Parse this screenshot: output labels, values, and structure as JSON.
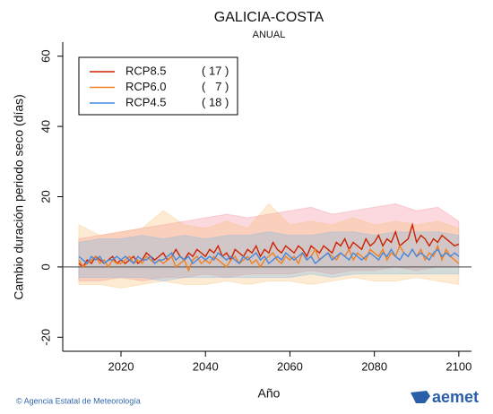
{
  "chart_data": {
    "type": "line",
    "title": "GALICIA-COSTA",
    "subtitle": "ANUAL",
    "x_label": "Año",
    "y_label": "Cambio duración periodo seco (días)",
    "footer": "© Agencia Estatal de Meteorología",
    "logo": "aemet",
    "xlim": [
      2006.2,
      2103
    ],
    "ylim": [
      -24,
      64
    ],
    "xticks": [
      2020,
      2040,
      2060,
      2080,
      2100
    ],
    "yticks": [
      -20,
      0,
      20,
      40,
      60
    ],
    "legend": "upper left",
    "x": [
      2010,
      2011,
      2012,
      2013,
      2014,
      2015,
      2016,
      2017,
      2018,
      2019,
      2020,
      2021,
      2022,
      2023,
      2024,
      2025,
      2026,
      2027,
      2028,
      2029,
      2030,
      2031,
      2032,
      2033,
      2034,
      2035,
      2036,
      2037,
      2038,
      2039,
      2040,
      2041,
      2042,
      2043,
      2044,
      2045,
      2046,
      2047,
      2048,
      2049,
      2050,
      2051,
      2052,
      2053,
      2054,
      2055,
      2056,
      2057,
      2058,
      2059,
      2060,
      2061,
      2062,
      2063,
      2064,
      2065,
      2066,
      2067,
      2068,
      2069,
      2070,
      2071,
      2072,
      2073,
      2074,
      2075,
      2076,
      2077,
      2078,
      2079,
      2080,
      2081,
      2082,
      2083,
      2084,
      2085,
      2086,
      2087,
      2088,
      2089,
      2090,
      2091,
      2092,
      2093,
      2094,
      2095,
      2096,
      2097,
      2098,
      2099,
      2100
    ],
    "series": [
      {
        "name": "RCP8.5",
        "count_label": "( 17 )",
        "color": "#cc2200",
        "band_color": "rgba(240,120,140,0.28)",
        "values": [
          1,
          0,
          2,
          1,
          3,
          2,
          1,
          2,
          3,
          1,
          2,
          1,
          2,
          3,
          1,
          2,
          4,
          3,
          2,
          3,
          4,
          2,
          3,
          5,
          3,
          2,
          4,
          3,
          5,
          4,
          3,
          5,
          4,
          6,
          3,
          4,
          2,
          5,
          4,
          3,
          5,
          4,
          6,
          3,
          5,
          4,
          7,
          5,
          4,
          6,
          5,
          4,
          6,
          5,
          3,
          6,
          5,
          4,
          6,
          5,
          4,
          7,
          6,
          8,
          5,
          7,
          6,
          5,
          8,
          6,
          7,
          9,
          6,
          8,
          7,
          10,
          6,
          7,
          8,
          12,
          7,
          9,
          8,
          6,
          8,
          7,
          9,
          8,
          7,
          6,
          6.5
        ],
        "band": {
          "x": [
            2010,
            2015,
            2020,
            2025,
            2030,
            2035,
            2040,
            2045,
            2050,
            2055,
            2060,
            2065,
            2070,
            2075,
            2080,
            2085,
            2090,
            2095,
            2100
          ],
          "upper": [
            8,
            9,
            10,
            11,
            12,
            13,
            14,
            15,
            14,
            15,
            16,
            17,
            15,
            16,
            17,
            18,
            16,
            17,
            13
          ],
          "lower": [
            -4,
            -4,
            -3,
            -4,
            -3,
            -3,
            -2,
            -3,
            -2,
            -2,
            -2,
            -1,
            -2,
            -1,
            -1,
            0,
            -1,
            0,
            0
          ]
        }
      },
      {
        "name": "RCP6.0",
        "count_label": "(   7 )",
        "color": "#f08020",
        "band_color": "rgba(250,190,110,0.30)",
        "values": [
          2,
          0,
          1,
          2,
          3,
          1,
          2,
          0,
          2,
          1,
          1,
          2,
          3,
          1,
          2,
          1,
          3,
          2,
          1,
          2,
          1,
          2,
          3,
          0,
          1,
          2,
          -1,
          2,
          3,
          1,
          2,
          1,
          3,
          2,
          1,
          0,
          2,
          3,
          1,
          2,
          3,
          1,
          2,
          0,
          2,
          3,
          4,
          2,
          1,
          3,
          2,
          3,
          1,
          4,
          2,
          3,
          5,
          2,
          3,
          4,
          3,
          2,
          4,
          3,
          5,
          2,
          4,
          3,
          2,
          5,
          4,
          3,
          5,
          2,
          4,
          3,
          6,
          4,
          3,
          5,
          3,
          5,
          2,
          4,
          3,
          6,
          2,
          5,
          3,
          2,
          1
        ],
        "band": {
          "x": [
            2010,
            2015,
            2020,
            2025,
            2030,
            2035,
            2040,
            2045,
            2050,
            2055,
            2060,
            2065,
            2070,
            2075,
            2080,
            2085,
            2090,
            2095,
            2100
          ],
          "upper": [
            12,
            9,
            10,
            11,
            16,
            12,
            11,
            13,
            11,
            18,
            12,
            13,
            12,
            14,
            12,
            13,
            12,
            13,
            11
          ],
          "lower": [
            -5,
            -5,
            -6,
            -5,
            -4,
            -5,
            -5,
            -4,
            -5,
            -4,
            -4,
            -5,
            -4,
            -3,
            -4,
            -4,
            -3,
            -4,
            -5
          ]
        }
      },
      {
        "name": "RCP4.5",
        "count_label": "( 18 )",
        "color": "#4488dd",
        "band_color": "rgba(120,180,230,0.30)",
        "values": [
          3,
          2,
          1,
          3,
          2,
          3,
          1,
          2,
          2,
          3,
          2,
          3,
          2,
          1,
          3,
          2,
          2,
          3,
          1,
          2,
          2,
          3,
          4,
          2,
          3,
          2,
          3,
          1,
          2,
          3,
          2,
          3,
          2,
          4,
          3,
          2,
          3,
          2,
          1,
          3,
          2,
          3,
          4,
          2,
          3,
          1,
          2,
          3,
          2,
          4,
          3,
          2,
          3,
          4,
          2,
          3,
          1,
          2,
          3,
          4,
          2,
          3,
          4,
          3,
          2,
          4,
          3,
          2,
          3,
          4,
          3,
          2,
          4,
          3,
          5,
          3,
          2,
          4,
          3,
          5,
          3,
          4,
          3,
          2,
          4,
          5,
          3,
          4,
          3,
          4,
          3
        ],
        "band": {
          "x": [
            2010,
            2015,
            2020,
            2025,
            2030,
            2035,
            2040,
            2045,
            2050,
            2055,
            2060,
            2065,
            2070,
            2075,
            2080,
            2085,
            2090,
            2095,
            2100
          ],
          "upper": [
            7,
            8,
            8,
            9,
            8,
            9,
            8,
            9,
            9,
            10,
            9,
            9,
            10,
            10,
            9,
            10,
            10,
            10,
            9
          ],
          "lower": [
            -3,
            -3,
            -3,
            -3,
            -4,
            -3,
            -3,
            -3,
            -3,
            -3,
            -3,
            -2,
            -3,
            -2,
            -2,
            -2,
            -2,
            -2,
            -2
          ]
        }
      }
    ]
  }
}
